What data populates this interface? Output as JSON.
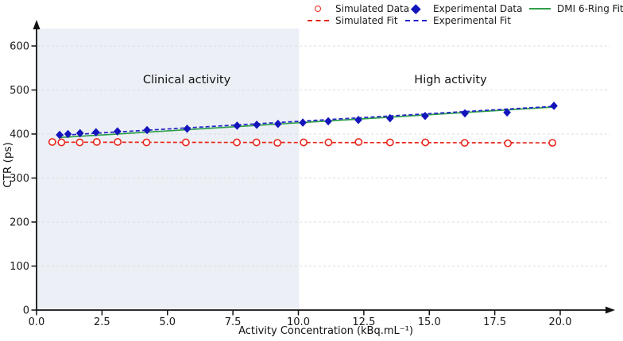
{
  "chart_data": {
    "type": "scatter",
    "title": "",
    "xlabel": "Activity Concentration (kBq.mL⁻¹)",
    "ylabel": "CTR (ps)",
    "xlim": [
      0,
      21.8
    ],
    "ylim": [
      0,
      645
    ],
    "grid": "horizontal-dashed",
    "x_ticks": [
      0,
      2.5,
      5,
      7.5,
      10,
      12.5,
      15,
      17.5,
      20
    ],
    "x_tick_labels": [
      "0.0",
      "2.5",
      "5.0",
      "7.5",
      "10.0",
      "12.5",
      "15.0",
      "17.5",
      "20.0"
    ],
    "y_ticks": [
      0,
      100,
      200,
      300,
      400,
      500,
      600
    ],
    "y_tick_labels": [
      "0",
      "100",
      "200",
      "300",
      "400",
      "500",
      "600"
    ],
    "regions": [
      {
        "label": "Clinical activity",
        "x_start": 0,
        "x_end": 10,
        "shaded": true
      },
      {
        "label": "High activity",
        "x_start": 10,
        "x_end": 21.8,
        "shaded": false
      }
    ],
    "series": [
      {
        "name": "DMI 6-Ring Fit",
        "type": "line",
        "style": "solid",
        "color": "#2f9e4b",
        "x": [
          0.88,
          19.8
        ],
        "y": [
          392,
          461.5
        ]
      },
      {
        "name": "Experimental Fit",
        "type": "line",
        "style": "dashed",
        "color": "#2424c8",
        "x": [
          0.88,
          19.8
        ],
        "y": [
          397,
          463
        ]
      },
      {
        "name": "Simulated Fit",
        "type": "line",
        "style": "dashed",
        "color": "#e8251a",
        "x": [
          0.6,
          19.73
        ],
        "y": [
          381.5,
          380
        ]
      },
      {
        "name": "Simulated Data",
        "type": "scatter",
        "marker": "circle-open",
        "color": "#e8251a",
        "x": [
          0.6,
          0.95,
          1.65,
          2.3,
          3.1,
          4.2,
          5.7,
          7.65,
          8.4,
          9.2,
          10.2,
          11.15,
          12.3,
          13.5,
          14.85,
          16.35,
          18.0,
          19.7
        ],
        "y": [
          382,
          381,
          381,
          382,
          382,
          381,
          381,
          381,
          381,
          380,
          381,
          381,
          382,
          381,
          381,
          380,
          379,
          380
        ]
      },
      {
        "name": "Experimental Data",
        "type": "scatter",
        "marker": "diamond",
        "color": "#1414bc",
        "x": [
          0.88,
          1.2,
          1.66,
          2.27,
          3.09,
          4.22,
          5.75,
          7.66,
          8.41,
          9.22,
          10.17,
          11.14,
          12.29,
          13.5,
          14.84,
          16.36,
          17.97,
          19.76
        ],
        "y": [
          398,
          400,
          402,
          404,
          406,
          409,
          412,
          419,
          421,
          423,
          426,
          429,
          432,
          436,
          441,
          447,
          449,
          464
        ]
      }
    ],
    "legend": {
      "position": "top-right",
      "items": [
        {
          "label": "Simulated Data",
          "marker": "circle-open",
          "color": "#e8251a"
        },
        {
          "label": "Experimental Data",
          "marker": "diamond",
          "color": "#1414bc"
        },
        {
          "label": "DMI 6-Ring Fit",
          "marker": "line-solid",
          "color": "#2f9e4b"
        },
        {
          "label": "Simulated Fit",
          "marker": "line-dashed",
          "color": "#e8251a"
        },
        {
          "label": "Experimental Fit",
          "marker": "line-dashed",
          "color": "#2424c8"
        }
      ]
    },
    "colors": {
      "shade": "#ecf0f6",
      "grid": "#d9dde2",
      "axis": "#111111",
      "text": "#1a1a1a"
    }
  }
}
